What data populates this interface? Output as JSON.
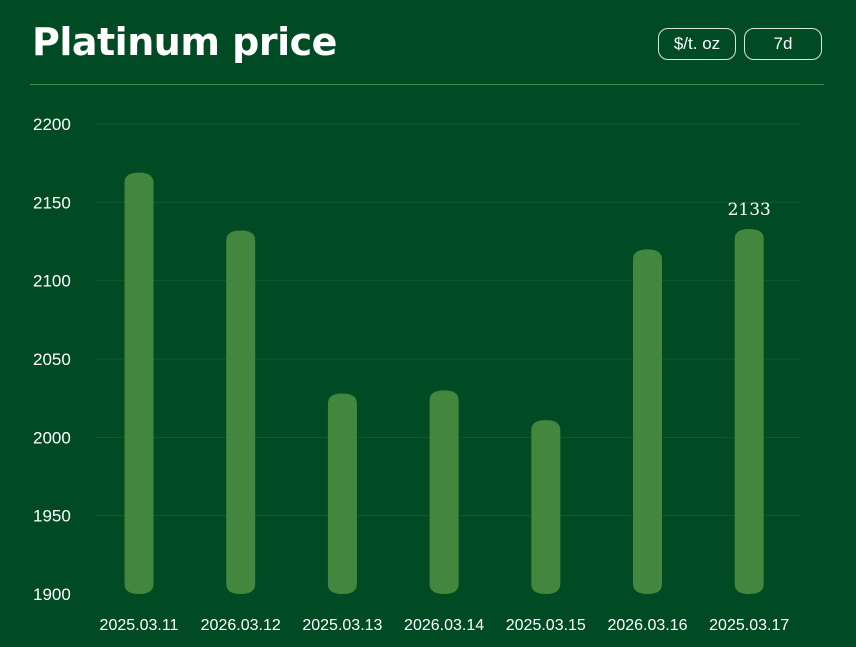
{
  "header": {
    "title": "Platinum price",
    "unit_label": "$/t. oz",
    "range_label": "7d"
  },
  "colors": {
    "background": "#004b23",
    "bar": "#43873f",
    "gridline": "#0e5a2a",
    "text": "#ffffff"
  },
  "chart_data": {
    "type": "bar",
    "title": "Platinum price",
    "categories": [
      "2025.03.11",
      "2026.03.12",
      "2025.03.13",
      "2026.03.14",
      "2025.03.15",
      "2026.03.16",
      "2025.03.17"
    ],
    "values": [
      2169,
      2132,
      2028,
      2030,
      2011,
      2120,
      2133
    ],
    "ylim": [
      1900,
      2200
    ],
    "yticks": [
      "1900",
      "1950",
      "2000",
      "2050",
      "2100",
      "2150",
      "2200"
    ],
    "data_labels": [
      {
        "index": 6,
        "text": "2133"
      }
    ],
    "grid": true,
    "xlabel": "",
    "ylabel": ""
  }
}
